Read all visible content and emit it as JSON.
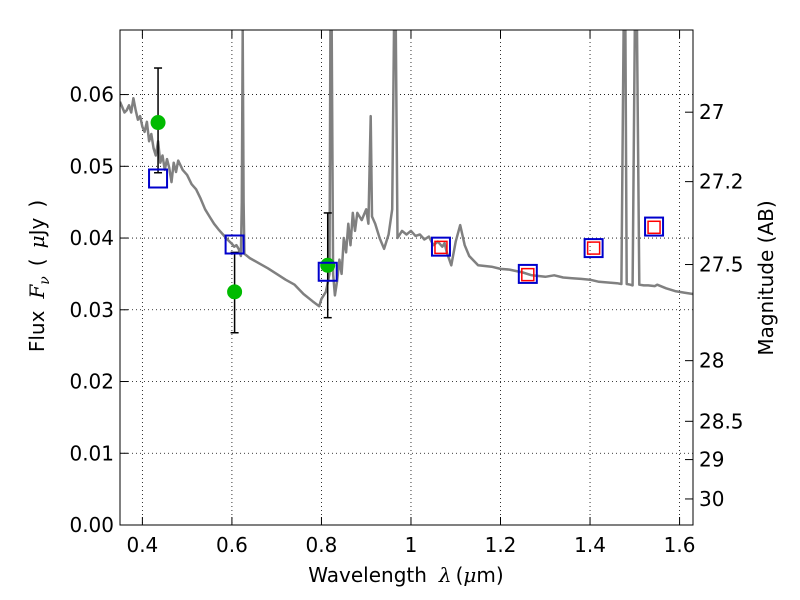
{
  "chart_data": {
    "type": "scatter",
    "title": "",
    "xlabel": "Wavelength  λ (μm)",
    "ylabel": "Flux  Fν  ( μJy )",
    "ylabel_right": "Magnitude (AB)",
    "xlim": [
      0.35,
      1.63
    ],
    "ylim": [
      0.0,
      0.069
    ],
    "grid": true,
    "grid_style": "dotted",
    "x_ticks": [
      0.4,
      0.6,
      0.8,
      1.0,
      1.2,
      1.4,
      1.6
    ],
    "x_tick_labels": [
      "0.4",
      "0.6",
      "0.8",
      "1",
      "1.2",
      "1.4",
      "1.6"
    ],
    "y_ticks": [
      0.0,
      0.01,
      0.02,
      0.03,
      0.04,
      0.05,
      0.06
    ],
    "y_tick_labels": [
      "0.00",
      "0.01",
      "0.02",
      "0.03",
      "0.04",
      "0.05",
      "0.06"
    ],
    "y2_ticks": [
      27.0,
      27.2,
      27.5,
      28.0,
      28.5,
      29.0,
      30.0
    ],
    "y2_tick_labels": [
      "27",
      "27.2",
      "27.5",
      "28",
      "28.5",
      "29",
      "30"
    ],
    "series": [
      {
        "kind": "line",
        "color": "#808080",
        "points": [
          [
            0.35,
            0.059
          ],
          [
            0.36,
            0.0575
          ],
          [
            0.365,
            0.0578
          ],
          [
            0.37,
            0.0585
          ],
          [
            0.375,
            0.0575
          ],
          [
            0.38,
            0.0595
          ],
          [
            0.385,
            0.0578
          ],
          [
            0.39,
            0.0565
          ],
          [
            0.395,
            0.057
          ],
          [
            0.4,
            0.0555
          ],
          [
            0.405,
            0.0548
          ],
          [
            0.41,
            0.0562
          ],
          [
            0.415,
            0.0535
          ],
          [
            0.42,
            0.0545
          ],
          [
            0.425,
            0.0525
          ],
          [
            0.43,
            0.0515
          ],
          [
            0.435,
            0.0535
          ],
          [
            0.44,
            0.0505
          ],
          [
            0.445,
            0.0515
          ],
          [
            0.45,
            0.0495
          ],
          [
            0.455,
            0.051
          ],
          [
            0.46,
            0.0498
          ],
          [
            0.465,
            0.0478
          ],
          [
            0.47,
            0.0505
          ],
          [
            0.475,
            0.0492
          ],
          [
            0.48,
            0.0508
          ],
          [
            0.49,
            0.0495
          ],
          [
            0.5,
            0.0488
          ],
          [
            0.51,
            0.0475
          ],
          [
            0.52,
            0.0468
          ],
          [
            0.53,
            0.0455
          ],
          [
            0.54,
            0.044
          ],
          [
            0.55,
            0.043
          ],
          [
            0.56,
            0.042
          ],
          [
            0.57,
            0.0412
          ],
          [
            0.58,
            0.0405
          ],
          [
            0.59,
            0.0398
          ],
          [
            0.6,
            0.0392
          ],
          [
            0.605,
            0.0388
          ],
          [
            0.61,
            0.039
          ],
          [
            0.615,
            0.0385
          ],
          [
            0.62,
            0.0375
          ],
          [
            0.622,
            0.045
          ],
          [
            0.624,
            0.069
          ],
          [
            0.626,
            0.045
          ],
          [
            0.628,
            0.0378
          ],
          [
            0.64,
            0.0372
          ],
          [
            0.66,
            0.0365
          ],
          [
            0.68,
            0.0358
          ],
          [
            0.7,
            0.035
          ],
          [
            0.72,
            0.0342
          ],
          [
            0.74,
            0.0335
          ],
          [
            0.76,
            0.0322
          ],
          [
            0.78,
            0.0312
          ],
          [
            0.795,
            0.0305
          ],
          [
            0.8,
            0.0315
          ],
          [
            0.81,
            0.0325
          ],
          [
            0.818,
            0.035
          ],
          [
            0.82,
            0.069
          ],
          [
            0.823,
            0.069
          ],
          [
            0.826,
            0.035
          ],
          [
            0.83,
            0.032
          ],
          [
            0.835,
            0.034
          ],
          [
            0.84,
            0.037
          ],
          [
            0.845,
            0.035
          ],
          [
            0.85,
            0.04
          ],
          [
            0.855,
            0.038
          ],
          [
            0.86,
            0.042
          ],
          [
            0.865,
            0.039
          ],
          [
            0.87,
            0.0435
          ],
          [
            0.875,
            0.041
          ],
          [
            0.88,
            0.0435
          ],
          [
            0.89,
            0.0425
          ],
          [
            0.9,
            0.044
          ],
          [
            0.905,
            0.042
          ],
          [
            0.91,
            0.057
          ],
          [
            0.913,
            0.043
          ],
          [
            0.92,
            0.042
          ],
          [
            0.93,
            0.04
          ],
          [
            0.94,
            0.0385
          ],
          [
            0.95,
            0.0405
          ],
          [
            0.958,
            0.044
          ],
          [
            0.962,
            0.069
          ],
          [
            0.966,
            0.069
          ],
          [
            0.97,
            0.04
          ],
          [
            0.98,
            0.041
          ],
          [
            0.99,
            0.0405
          ],
          [
            1.0,
            0.041
          ],
          [
            1.01,
            0.0403
          ],
          [
            1.02,
            0.0405
          ],
          [
            1.03,
            0.0398
          ],
          [
            1.04,
            0.0402
          ],
          [
            1.05,
            0.039
          ],
          [
            1.06,
            0.0395
          ],
          [
            1.07,
            0.0388
          ],
          [
            1.075,
            0.0393
          ],
          [
            1.08,
            0.038
          ],
          [
            1.09,
            0.0362
          ],
          [
            1.1,
            0.0395
          ],
          [
            1.11,
            0.0418
          ],
          [
            1.12,
            0.039
          ],
          [
            1.13,
            0.0375
          ],
          [
            1.15,
            0.0362
          ],
          [
            1.18,
            0.036
          ],
          [
            1.2,
            0.0357
          ],
          [
            1.22,
            0.0356
          ],
          [
            1.25,
            0.0352
          ],
          [
            1.27,
            0.0348
          ],
          [
            1.3,
            0.0346
          ],
          [
            1.32,
            0.0348
          ],
          [
            1.34,
            0.0345
          ],
          [
            1.36,
            0.0344
          ],
          [
            1.38,
            0.0343
          ],
          [
            1.4,
            0.0342
          ],
          [
            1.42,
            0.0339
          ],
          [
            1.44,
            0.0338
          ],
          [
            1.46,
            0.0337
          ],
          [
            1.47,
            0.0336
          ],
          [
            1.475,
            0.069
          ],
          [
            1.479,
            0.069
          ],
          [
            1.482,
            0.0336
          ],
          [
            1.49,
            0.0335
          ],
          [
            1.495,
            0.0334
          ],
          [
            1.5,
            0.069
          ],
          [
            1.505,
            0.069
          ],
          [
            1.51,
            0.0335
          ],
          [
            1.52,
            0.0334
          ],
          [
            1.53,
            0.0334
          ],
          [
            1.545,
            0.0333
          ],
          [
            1.55,
            0.0335
          ],
          [
            1.57,
            0.033
          ],
          [
            1.59,
            0.0326
          ],
          [
            1.61,
            0.0324
          ],
          [
            1.63,
            0.0322
          ]
        ]
      },
      {
        "kind": "points",
        "marker": "circle",
        "color": "#00bb00",
        "points": [
          {
            "x": 0.435,
            "y": 0.0561,
            "err": [
              0.0491,
              0.0637
            ]
          },
          {
            "x": 0.606,
            "y": 0.0325,
            "err": [
              0.0268,
              0.038
            ]
          },
          {
            "x": 0.814,
            "y": 0.0362,
            "err": [
              0.0289,
              0.0435
            ]
          }
        ]
      },
      {
        "kind": "points",
        "marker": "square-open",
        "color": "#0000cc",
        "points": [
          {
            "x": 0.435,
            "y": 0.0483
          },
          {
            "x": 0.606,
            "y": 0.0391
          },
          {
            "x": 0.814,
            "y": 0.0353
          },
          {
            "x": 1.067,
            "y": 0.0388
          },
          {
            "x": 1.261,
            "y": 0.035
          },
          {
            "x": 1.408,
            "y": 0.0386
          },
          {
            "x": 1.543,
            "y": 0.0416
          }
        ]
      },
      {
        "kind": "points",
        "marker": "square-open-small",
        "color": "#ff0000",
        "points": [
          {
            "x": 1.067,
            "y": 0.0387
          },
          {
            "x": 1.261,
            "y": 0.0349
          },
          {
            "x": 1.408,
            "y": 0.0386
          },
          {
            "x": 1.543,
            "y": 0.0415
          }
        ]
      }
    ]
  }
}
